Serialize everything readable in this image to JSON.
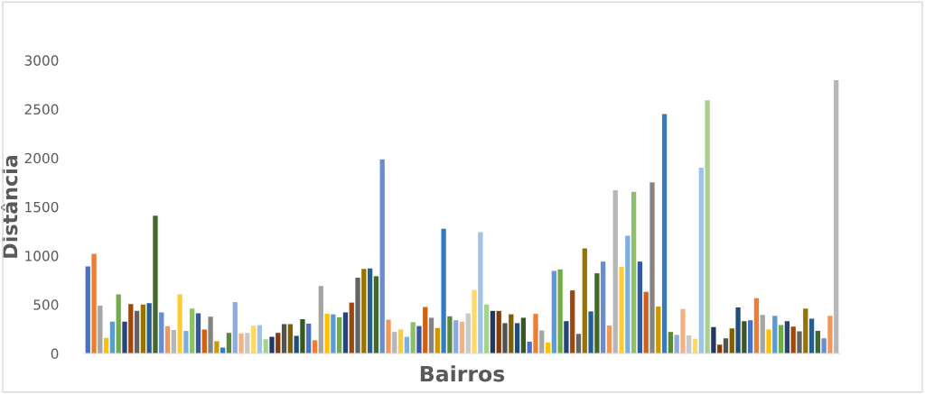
{
  "chart_data": {
    "type": "bar",
    "xlabel": "Bairros",
    "ylabel": "Distância",
    "categories": [
      null,
      null,
      null,
      null,
      null,
      null,
      null,
      null,
      null,
      null,
      null,
      null,
      null,
      null,
      null,
      null,
      null,
      null,
      null,
      null,
      null,
      null,
      null,
      null,
      null,
      null,
      null,
      null,
      null,
      null,
      null,
      null,
      null,
      null,
      null,
      null,
      null,
      null,
      null,
      null,
      null,
      null,
      null,
      null,
      null,
      null,
      null,
      null,
      null,
      null,
      null,
      null,
      null,
      null,
      null,
      null,
      null,
      null,
      null,
      null,
      null,
      null,
      null,
      null,
      null,
      null,
      null,
      null,
      null,
      null,
      null,
      null,
      null,
      null,
      null,
      null,
      null,
      null,
      null,
      null,
      null,
      null,
      null,
      null,
      null,
      null,
      null,
      null,
      null,
      null,
      null,
      null,
      null,
      null,
      null,
      null,
      null,
      null,
      null,
      null,
      null,
      null,
      null,
      null,
      null,
      null,
      null,
      null,
      null,
      null,
      null,
      null,
      null,
      null,
      null,
      null,
      null,
      null,
      null,
      null,
      null,
      null,
      null
    ],
    "values": [
      890,
      1020,
      490,
      160,
      325,
      605,
      325,
      505,
      435,
      500,
      515,
      1410,
      420,
      280,
      240,
      605,
      230,
      460,
      410,
      245,
      375,
      125,
      60,
      210,
      525,
      205,
      210,
      285,
      290,
      145,
      170,
      210,
      300,
      300,
      180,
      350,
      305,
      135,
      690,
      405,
      400,
      370,
      420,
      520,
      775,
      865,
      870,
      790,
      1985,
      345,
      220,
      245,
      170,
      320,
      280,
      475,
      365,
      260,
      1275,
      380,
      340,
      325,
      410,
      650,
      1240,
      500,
      435,
      435,
      310,
      400,
      310,
      365,
      120,
      405,
      235,
      110,
      845,
      860,
      330,
      645,
      200,
      1075,
      430,
      820,
      940,
      285,
      1670,
      885,
      1205,
      1655,
      940,
      630,
      1750,
      480,
      2450,
      220,
      190,
      455,
      185,
      150,
      1900,
      2590,
      270,
      90,
      155,
      255,
      470,
      330,
      340,
      565,
      395,
      245,
      385,
      290,
      330,
      275,
      225,
      460,
      355,
      230,
      155,
      385,
      2795
    ],
    "colors": [
      "#4472c4",
      "#ed7d31",
      "#a5a5a5",
      "#ffc000",
      "#5b9bd5",
      "#70ad47",
      "#264478",
      "#9e480e",
      "#636363",
      "#997300",
      "#255e91",
      "#43682b",
      "#698ed0",
      "#f1975a",
      "#b7b7b7",
      "#ffcd33",
      "#7cafdd",
      "#8cc168",
      "#335aa1",
      "#d26012",
      "#848484",
      "#cc9a00",
      "#327dc2",
      "#5a8a39",
      "#8faadc",
      "#f4b183",
      "#c9c9c9",
      "#ffd966",
      "#9dc3e6",
      "#a9d18e",
      "#203864",
      "#843c0c",
      "#525252",
      "#7f6000",
      "#1f4e79",
      "#385723",
      "#4472c4",
      "#ed7d31",
      "#a5a5a5",
      "#ffc000",
      "#5b9bd5",
      "#70ad47",
      "#264478",
      "#9e480e",
      "#636363",
      "#997300",
      "#255e91",
      "#43682b",
      "#698ed0",
      "#f1975a",
      "#b7b7b7",
      "#ffcd33",
      "#7cafdd",
      "#8cc168",
      "#335aa1",
      "#d26012",
      "#848484",
      "#cc9a00",
      "#327dc2",
      "#5a8a39",
      "#8faadc",
      "#f4b183",
      "#c9c9c9",
      "#ffd966",
      "#9dc3e6",
      "#a9d18e",
      "#203864",
      "#843c0c",
      "#525252",
      "#7f6000",
      "#1f4e79",
      "#385723",
      "#4472c4",
      "#ed7d31",
      "#a5a5a5",
      "#ffc000",
      "#5b9bd5",
      "#70ad47",
      "#264478",
      "#9e480e",
      "#636363",
      "#997300",
      "#255e91",
      "#43682b",
      "#698ed0",
      "#f1975a",
      "#b7b7b7",
      "#ffcd33",
      "#7cafdd",
      "#8cc168",
      "#335aa1",
      "#d26012",
      "#848484",
      "#cc9a00",
      "#327dc2",
      "#5a8a39",
      "#8faadc",
      "#f4b183",
      "#c9c9c9",
      "#ffd966",
      "#9dc3e6",
      "#a9d18e",
      "#203864",
      "#843c0c",
      "#525252",
      "#7f6000",
      "#1f4e79",
      "#385723",
      "#4472c4",
      "#ed7d31",
      "#a5a5a5",
      "#ffc000",
      "#5b9bd5",
      "#70ad47",
      "#264478",
      "#9e480e",
      "#636363",
      "#997300",
      "#255e91",
      "#43682b",
      "#698ed0",
      "#f1975a",
      "#b7b7b7"
    ],
    "ylim": [
      0,
      3000
    ],
    "yticks": [
      0,
      500,
      1000,
      1500,
      2000,
      2500,
      3000
    ],
    "grid": false,
    "legend": false
  }
}
